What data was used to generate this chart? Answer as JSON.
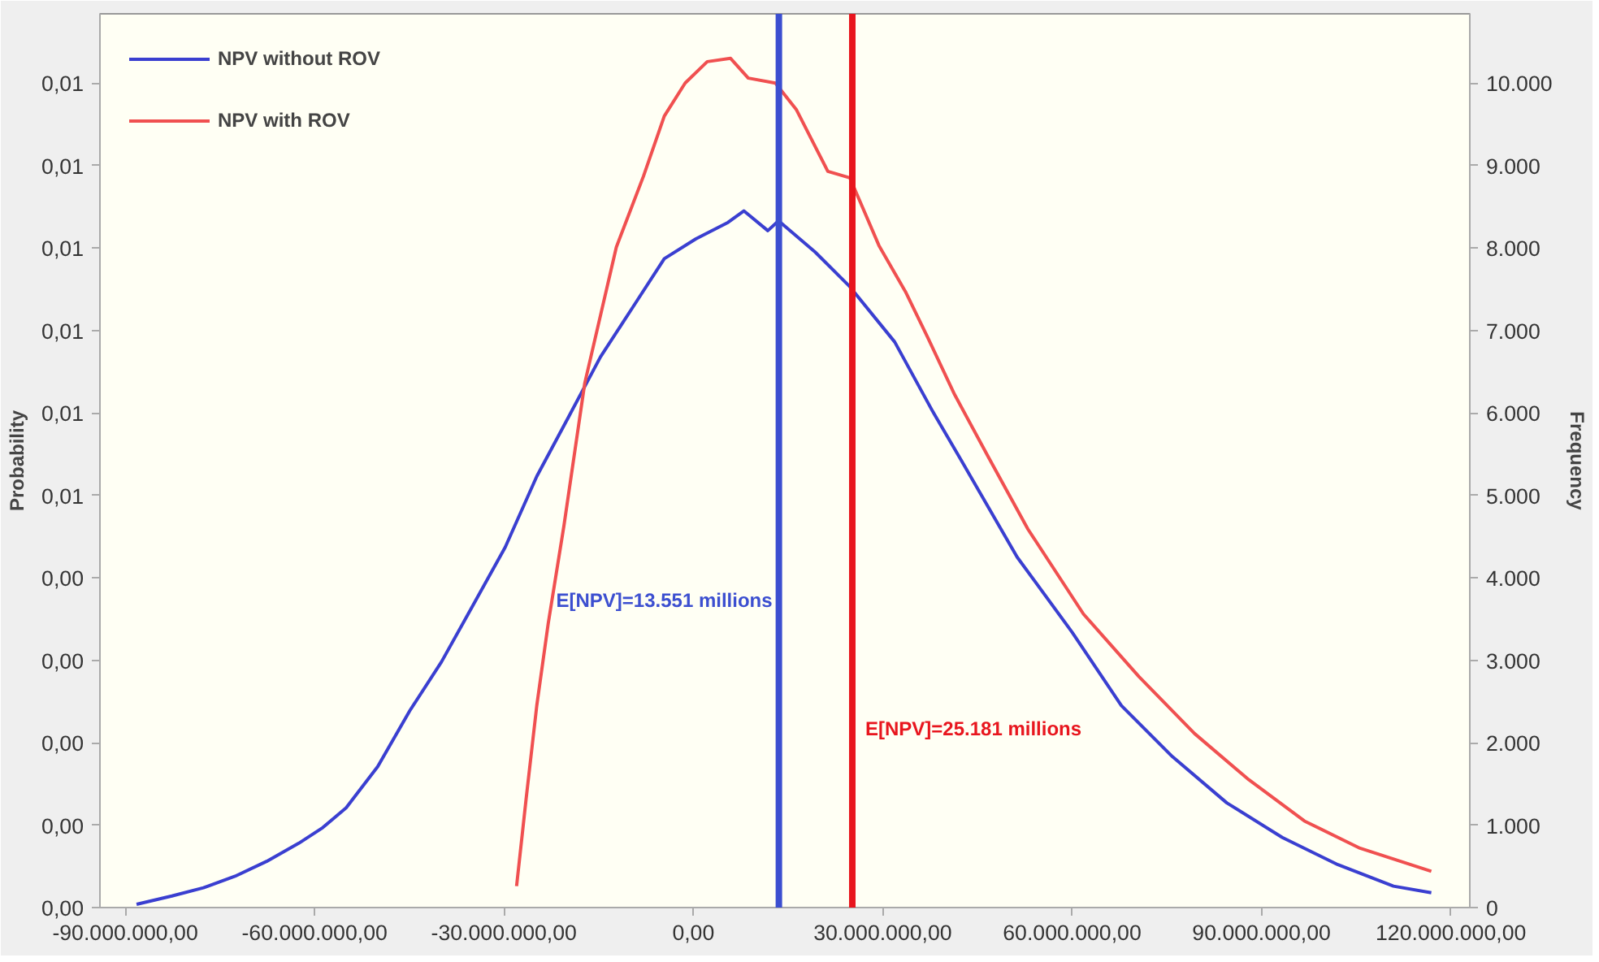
{
  "chart_data": {
    "type": "line",
    "ylabel": "Probability",
    "y2label": "Frequency",
    "legend": "top left",
    "grid": false,
    "xlim": [
      -94000000,
      123000000
    ],
    "xticks": [
      {
        "value": -90000000,
        "label": "-90.000.000,00"
      },
      {
        "value": -60000000,
        "label": "-60.000.000,00"
      },
      {
        "value": -30000000,
        "label": "-30.000.000,00"
      },
      {
        "value": 0,
        "label": "0,00"
      },
      {
        "value": 30000000,
        "label": "30.000.000,00"
      },
      {
        "value": 60000000,
        "label": "60.000.000,00"
      },
      {
        "value": 90000000,
        "label": "90.000.000,00"
      },
      {
        "value": 120000000,
        "label": "120.000.000,00"
      }
    ],
    "ylim": [
      0,
      0.01084
    ],
    "yticks": [
      {
        "value": 0,
        "label": "0,00"
      },
      {
        "value": 0.001,
        "label": "0,00"
      },
      {
        "value": 0.002,
        "label": "0,00"
      },
      {
        "value": 0.003,
        "label": "0,00"
      },
      {
        "value": 0.004,
        "label": "0,00"
      },
      {
        "value": 0.005,
        "label": "0,01"
      },
      {
        "value": 0.006,
        "label": "0,01"
      },
      {
        "value": 0.007,
        "label": "0,01"
      },
      {
        "value": 0.008,
        "label": "0,01"
      },
      {
        "value": 0.009,
        "label": "0,01"
      },
      {
        "value": 0.01,
        "label": "0,01"
      }
    ],
    "y2lim": [
      0,
      10840
    ],
    "y2ticks": [
      0,
      {
        "value": 1000,
        "label": "1.000"
      },
      {
        "value": 2000,
        "label": "2.000"
      },
      {
        "value": 3000,
        "label": "3.000"
      },
      {
        "value": 4000,
        "label": "4.000"
      },
      {
        "value": 5000,
        "label": "5.000"
      },
      {
        "value": 6000,
        "label": "6.000"
      },
      {
        "value": 7000,
        "label": "7.000"
      },
      {
        "value": 8000,
        "label": "8.000"
      },
      {
        "value": 9000,
        "label": "9.000"
      },
      {
        "value": 10000,
        "label": "10.000"
      }
    ],
    "series": [
      {
        "name": "NPV without ROV",
        "color": "#3a3fd0",
        "axis": "y2",
        "x": [
          -88200000,
          -82600000,
          -77600000,
          -72600000,
          -67600000,
          -62500000,
          -58700000,
          -55000000,
          -50000000,
          -44900000,
          -39900000,
          -34800000,
          -29800000,
          -24800000,
          -19700000,
          -14700000,
          -9600000,
          -4600000,
          400000,
          5500000,
          8000000,
          11800000,
          13500000,
          19300000,
          24800000,
          31900000,
          37900000,
          42400000,
          51300000,
          60000000,
          67800000,
          75900000,
          84500000,
          93300000,
          102100000,
          110900000,
          116900000
        ],
        "values": [
          40,
          140,
          240,
          380,
          560,
          780,
          970,
          1210,
          1710,
          2390,
          2980,
          3680,
          4370,
          5230,
          5960,
          6680,
          7280,
          7870,
          8110,
          8310,
          8450,
          8210,
          8330,
          7950,
          7530,
          6860,
          6020,
          5430,
          4250,
          3340,
          2450,
          1830,
          1270,
          850,
          520,
          260,
          180
        ]
      },
      {
        "name": "NPV with ROV",
        "color": "#f05050",
        "axis": "y2",
        "x": [
          -28000000,
          -26500000,
          -24800000,
          -23000000,
          -20500000,
          -17200000,
          -12200000,
          -7900000,
          -4600000,
          -1300000,
          2200000,
          5900000,
          8700000,
          13000000,
          16300000,
          21300000,
          24800000,
          29400000,
          33600000,
          37100000,
          41400000,
          46700000,
          53000000,
          61800000,
          70600000,
          79400000,
          88000000,
          96800000,
          105600000,
          116900000
        ],
        "values": [
          260,
          1310,
          2450,
          3440,
          4630,
          6360,
          8010,
          8870,
          9600,
          10000,
          10260,
          10300,
          10060,
          10000,
          9680,
          8930,
          8850,
          8030,
          7470,
          6920,
          6220,
          5470,
          4590,
          3560,
          2800,
          2110,
          1550,
          1050,
          720,
          440
        ]
      }
    ],
    "ref_lines": [
      {
        "axis": "x",
        "value": 13551000,
        "color": "#3c4fd0",
        "label": "E[NPV]=13.551 millions"
      },
      {
        "axis": "x",
        "value": 25181000,
        "color": "#e8161e",
        "label": "E[NPV]=25.181 millions"
      }
    ]
  }
}
